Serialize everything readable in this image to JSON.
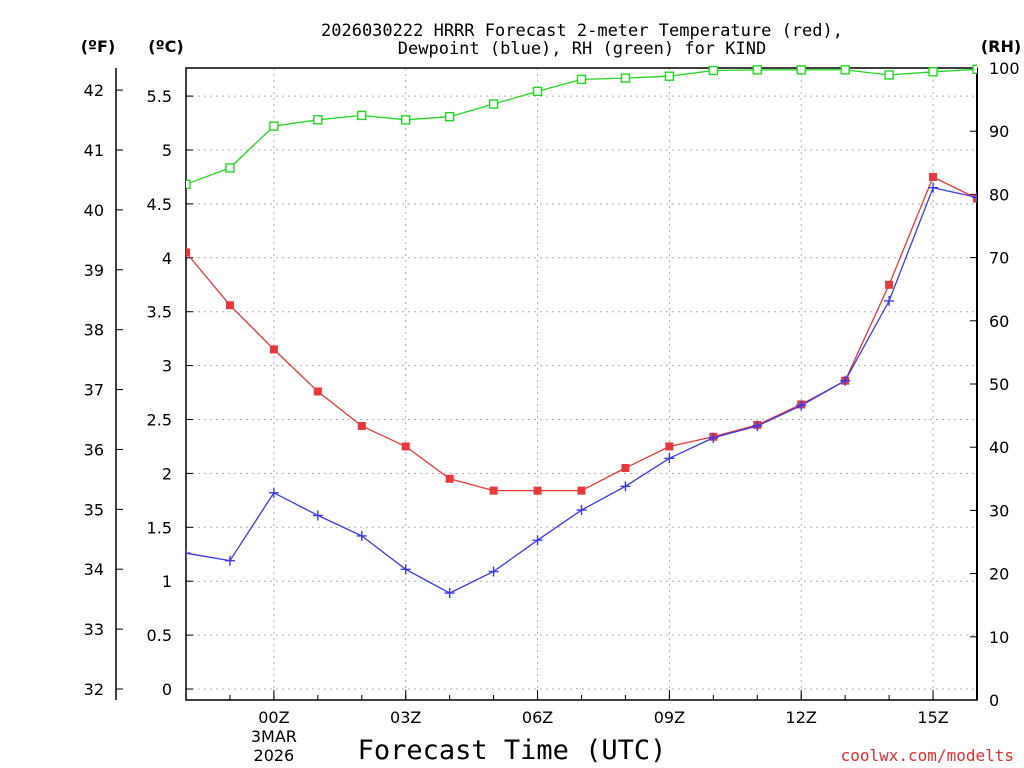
{
  "chart_data": {
    "type": "line",
    "title_line1": "2026030222 HRRR Forecast 2-meter Temperature (red),",
    "title_line2": "Dewpoint (blue), RH (green) for KIND",
    "xlabel": "Forecast Time (UTC)",
    "credit": "coolwx.com/modelts",
    "units": {
      "f": "(ºF)",
      "c": "(ºC)",
      "rh": "(RH)"
    },
    "x_hours": [
      -2,
      -1,
      0,
      1,
      2,
      3,
      4,
      5,
      6,
      7,
      8,
      9,
      10,
      11,
      12,
      13,
      14,
      15,
      16
    ],
    "x_ticks": [
      {
        "hour": 0,
        "label": "00Z",
        "sub1": "3MAR",
        "sub2": "2026"
      },
      {
        "hour": 3,
        "label": "03Z"
      },
      {
        "hour": 6,
        "label": "06Z"
      },
      {
        "hour": 9,
        "label": "09Z"
      },
      {
        "hour": 12,
        "label": "12Z"
      },
      {
        "hour": 15,
        "label": "15Z"
      }
    ],
    "xlim": [
      -2,
      16
    ],
    "y_celsius_ticks": [
      "0",
      "0.5",
      "1",
      "1.5",
      "2",
      "2.5",
      "3",
      "3.5",
      "4",
      "4.5",
      "5",
      "5.5"
    ],
    "y_celsius_lim": [
      0,
      5.7
    ],
    "y_fahrenheit_ticks": [
      "32",
      "33",
      "34",
      "35",
      "36",
      "37",
      "38",
      "39",
      "40",
      "41",
      "42"
    ],
    "y_rh_ticks": [
      "0",
      "10",
      "20",
      "30",
      "40",
      "50",
      "60",
      "70",
      "80",
      "90",
      "100"
    ],
    "y_rh_lim": [
      0,
      100
    ],
    "series": [
      {
        "name": "Temperature",
        "color": "#e8383a",
        "axis": "celsius",
        "marker": "filled-square",
        "values": [
          4.05,
          3.56,
          3.15,
          2.76,
          2.44,
          2.25,
          1.95,
          1.84,
          1.84,
          1.84,
          2.05,
          2.25,
          2.34,
          2.45,
          2.64,
          2.86,
          3.75,
          4.75,
          4.55
        ]
      },
      {
        "name": "Dewpoint",
        "color": "#3a3ae8",
        "axis": "celsius",
        "marker": "plus",
        "values": [
          1.26,
          1.19,
          1.82,
          1.61,
          1.42,
          1.11,
          0.89,
          1.09,
          1.38,
          1.66,
          1.88,
          2.14,
          2.33,
          2.44,
          2.63,
          2.86,
          3.6,
          4.65,
          4.56
        ]
      },
      {
        "name": "RH",
        "color": "#22d822",
        "axis": "rh",
        "marker": "open-square",
        "values": [
          81.6,
          84.2,
          90.8,
          91.8,
          92.5,
          91.8,
          92.3,
          94.3,
          96.3,
          98.2,
          98.4,
          98.7,
          99.6,
          99.7,
          99.7,
          99.7,
          98.9,
          99.4,
          99.8
        ]
      }
    ]
  }
}
